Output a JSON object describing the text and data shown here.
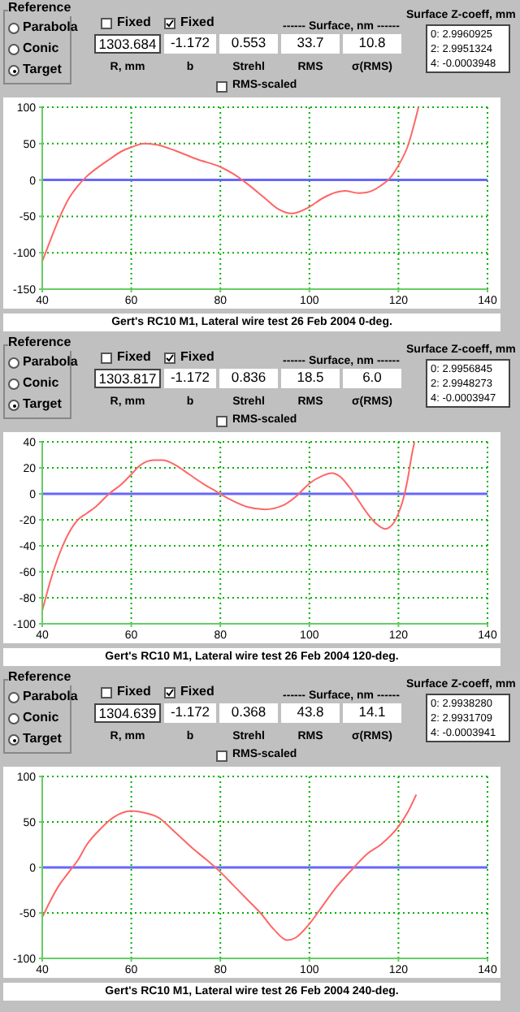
{
  "chart_data": [
    {
      "type": "line",
      "title": "Gert's RC10 M1, Lateral wire test 26 Feb 2004 0-deg.",
      "xlim": [
        40,
        140
      ],
      "xticks": [
        40,
        60,
        80,
        100,
        120,
        140
      ],
      "ylim": [
        -150,
        100
      ],
      "yticks": [
        -150,
        -100,
        -50,
        0,
        50,
        100
      ],
      "grid": true,
      "marker": "none",
      "series": [
        {
          "color": "#ff6666",
          "x": [
            40,
            42,
            44,
            46,
            48,
            50,
            52,
            55,
            58,
            60,
            63,
            66,
            70,
            75,
            80,
            83,
            86,
            90,
            93,
            96,
            100,
            103,
            106,
            108,
            111,
            113,
            116,
            118,
            120,
            122,
            124.5
          ],
          "values": [
            -112,
            -80,
            -50,
            -25,
            -8,
            5,
            15,
            28,
            40,
            45,
            50,
            48,
            40,
            28,
            18,
            8,
            -5,
            -25,
            -40,
            -46,
            -37,
            -25,
            -17,
            -15,
            -18,
            -17,
            -8,
            2,
            20,
            45,
            100
          ]
        }
      ],
      "ref_lines": [
        {
          "axis": "y",
          "value": 0,
          "color": "#6666ff"
        }
      ],
      "annotations": [
        "Reference",
        "Parabola",
        "Conic",
        "Target",
        "Fixed",
        "Fixed",
        "1303.684",
        "-1.172",
        "0.553",
        "33.7",
        "10.8",
        "R, mm",
        "b",
        "Strehl",
        "RMS",
        "σ(RMS)",
        "------ Surface, nm ------",
        "RMS-scaled",
        "Surface Z-coeff, mm",
        "0:  2.9960925",
        "2:  2.9951324",
        "4:  -0.0003948"
      ]
    },
    {
      "type": "line",
      "title": "Gert's RC10 M1, Lateral wire test 26 Feb 2004 120-deg.",
      "xlim": [
        40,
        140
      ],
      "xticks": [
        40,
        60,
        80,
        100,
        120,
        140
      ],
      "ylim": [
        -100,
        40
      ],
      "yticks": [
        -100,
        -80,
        -60,
        -40,
        -20,
        0,
        20,
        40
      ],
      "grid": true,
      "marker": "none",
      "series": [
        {
          "color": "#ff6666",
          "x": [
            40,
            42,
            44,
            46,
            48,
            50,
            52,
            55,
            58,
            60,
            62,
            65,
            67,
            70,
            73,
            76,
            79,
            82,
            86,
            90,
            94,
            97,
            100,
            103,
            105,
            107,
            109,
            111,
            113,
            115,
            117,
            119,
            120,
            121,
            122,
            123,
            123.6
          ],
          "values": [
            -90,
            -65,
            -45,
            -30,
            -20,
            -15,
            -10,
            0,
            8,
            15,
            22,
            26,
            26,
            22,
            15,
            8,
            2,
            -4,
            -10,
            -12,
            -9,
            -2,
            8,
            14,
            16,
            13,
            5,
            -5,
            -15,
            -23,
            -27,
            -22,
            -15,
            -5,
            10,
            30,
            40
          ]
        }
      ],
      "ref_lines": [
        {
          "axis": "y",
          "value": 0,
          "color": "#6666ff"
        }
      ],
      "annotations": [
        "Reference",
        "Parabola",
        "Conic",
        "Target",
        "Fixed",
        "Fixed",
        "1303.817",
        "-1.172",
        "0.836",
        "18.5",
        "6.0",
        "R, mm",
        "b",
        "Strehl",
        "RMS",
        "σ(RMS)",
        "------ Surface, nm ------",
        "RMS-scaled",
        "Surface Z-coeff, mm",
        "0:  2.9956845",
        "2:  2.9948273",
        "4:  -0.0003947"
      ]
    },
    {
      "type": "line",
      "title": "Gert's RC10 M1, Lateral wire test 26 Feb 2004 240-deg.",
      "xlim": [
        40,
        140
      ],
      "xticks": [
        40,
        60,
        80,
        100,
        120,
        140
      ],
      "ylim": [
        -100,
        100
      ],
      "yticks": [
        -100,
        -50,
        0,
        50,
        100
      ],
      "grid": true,
      "marker": "none",
      "series": [
        {
          "color": "#ff6666",
          "x": [
            40,
            42,
            44,
            46,
            48,
            50,
            53,
            56,
            60,
            63,
            66,
            70,
            74,
            77,
            80,
            83,
            86,
            89,
            92,
            95,
            97,
            100,
            103,
            106,
            110,
            113,
            116,
            120,
            122,
            124
          ],
          "values": [
            -55,
            -35,
            -18,
            -5,
            8,
            25,
            42,
            55,
            62,
            60,
            55,
            38,
            20,
            8,
            -5,
            -20,
            -35,
            -50,
            -68,
            -80,
            -77,
            -62,
            -42,
            -22,
            0,
            15,
            25,
            45,
            60,
            80
          ]
        }
      ],
      "ref_lines": [
        {
          "axis": "y",
          "value": 0,
          "color": "#6666ff"
        }
      ],
      "annotations": [
        "Reference",
        "Parabola",
        "Conic",
        "Target",
        "Fixed",
        "Fixed",
        "1304.639",
        "-1.172",
        "0.368",
        "43.8",
        "14.1",
        "R, mm",
        "b",
        "Strehl",
        "RMS",
        "σ(RMS)",
        "------ Surface, nm ------",
        "RMS-scaled",
        "Surface Z-coeff, mm",
        "0:  2.9938280",
        "2:  2.9931709",
        "4:  -0.0003941"
      ]
    }
  ]
}
